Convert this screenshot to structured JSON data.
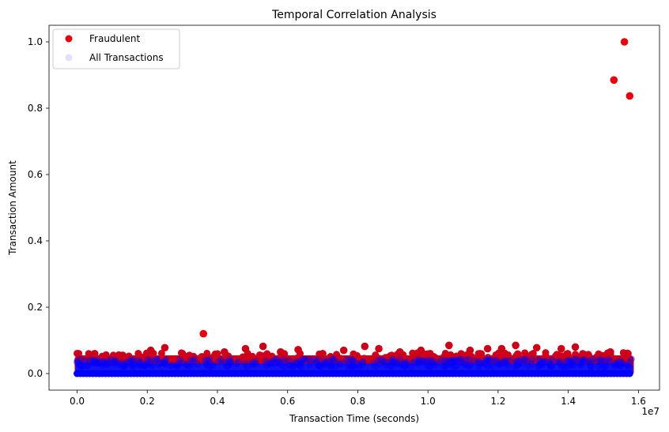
{
  "chart_data": {
    "type": "scatter",
    "title": "Temporal Correlation Analysis",
    "xlabel": "Transaction Time (seconds)",
    "ylabel": "Transaction Amount",
    "x_offset_label": "1e7",
    "xlim": [
      -800000,
      16600000
    ],
    "ylim": [
      -0.05,
      1.05
    ],
    "xticks": [
      0,
      2000000,
      4000000,
      6000000,
      8000000,
      10000000,
      12000000,
      14000000,
      16000000
    ],
    "xtick_labels": [
      "0.0",
      "0.2",
      "0.4",
      "0.6",
      "0.8",
      "1.0",
      "1.2",
      "1.4",
      "1.6"
    ],
    "yticks": [
      0.0,
      0.2,
      0.4,
      0.6,
      0.8,
      1.0
    ],
    "ytick_labels": [
      "0.0",
      "0.2",
      "0.4",
      "0.6",
      "0.8",
      "1.0"
    ],
    "grid": false,
    "legend_position": "upper-left",
    "series": [
      {
        "name": "Fraudulent",
        "color": "#e8000b",
        "opacity": 1.0,
        "points": [
          {
            "x": 15600000,
            "y": 1.0
          },
          {
            "x": 15300000,
            "y": 0.885
          },
          {
            "x": 15750000,
            "y": 0.837
          },
          {
            "x": 3600000,
            "y": 0.12
          },
          {
            "x": 500000,
            "y": 0.06
          },
          {
            "x": 1300000,
            "y": 0.055
          },
          {
            "x": 2100000,
            "y": 0.07
          },
          {
            "x": 2500000,
            "y": 0.078
          },
          {
            "x": 3000000,
            "y": 0.06
          },
          {
            "x": 4200000,
            "y": 0.065
          },
          {
            "x": 4800000,
            "y": 0.075
          },
          {
            "x": 5300000,
            "y": 0.082
          },
          {
            "x": 5800000,
            "y": 0.065
          },
          {
            "x": 6300000,
            "y": 0.072
          },
          {
            "x": 7000000,
            "y": 0.06
          },
          {
            "x": 7600000,
            "y": 0.07
          },
          {
            "x": 8200000,
            "y": 0.082
          },
          {
            "x": 8600000,
            "y": 0.075
          },
          {
            "x": 9200000,
            "y": 0.065
          },
          {
            "x": 9800000,
            "y": 0.07
          },
          {
            "x": 10600000,
            "y": 0.085
          },
          {
            "x": 11200000,
            "y": 0.07
          },
          {
            "x": 11700000,
            "y": 0.075
          },
          {
            "x": 12100000,
            "y": 0.075
          },
          {
            "x": 12500000,
            "y": 0.085
          },
          {
            "x": 13100000,
            "y": 0.078
          },
          {
            "x": 13800000,
            "y": 0.075
          },
          {
            "x": 14200000,
            "y": 0.08
          },
          {
            "x": 15200000,
            "y": 0.065
          },
          {
            "x": 15700000,
            "y": 0.06
          }
        ]
      },
      {
        "name": "All Transactions",
        "color": "#0000ff",
        "opacity": 0.12,
        "x_range": [
          0,
          15800000
        ],
        "y_range": [
          0.0,
          0.04
        ]
      }
    ]
  }
}
